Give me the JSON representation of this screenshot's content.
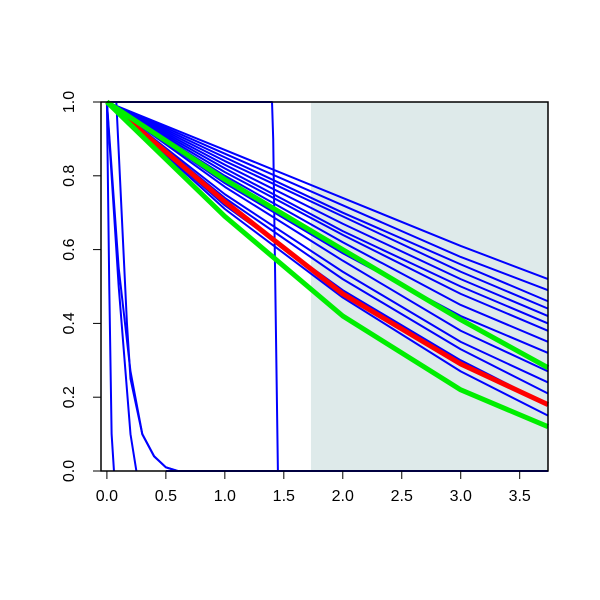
{
  "chart_data": {
    "type": "line",
    "xlim": [
      -0.05,
      3.74
    ],
    "ylim": [
      0,
      1
    ],
    "xticks": [
      {
        "value": 0,
        "label": "0.0"
      },
      0.5,
      {
        "value": 1,
        "label": "1.0"
      },
      1.5,
      {
        "value": 2,
        "label": "2.0"
      },
      2.5,
      {
        "value": 3,
        "label": "3.0"
      },
      3.5
    ],
    "yticks": [
      {
        "value": 0,
        "label": "0.0"
      },
      0.2,
      0.4,
      0.6,
      0.8,
      {
        "value": 1,
        "label": "1.0"
      }
    ],
    "shade": {
      "xlim": [
        1.73,
        3.74
      ],
      "color": "#deeaea"
    },
    "series": [
      {
        "color": "#0000ff",
        "width": 2,
        "x": [
          0.5,
          3.74
        ],
        "values": [
          0,
          0
        ]
      },
      {
        "color": "#0000ff",
        "width": 2,
        "x": [
          0,
          0.02,
          0.04,
          0.06
        ],
        "values": [
          1,
          0.5,
          0.1,
          0
        ]
      },
      {
        "color": "#0000ff",
        "width": 2,
        "x": [
          0,
          0.1,
          0.2,
          0.25
        ],
        "values": [
          1,
          0.5,
          0.1,
          0
        ]
      },
      {
        "color": "#0000ff",
        "width": 2,
        "x": [
          0,
          0.1,
          0.2,
          0.3,
          0.4,
          0.5,
          0.6
        ],
        "values": [
          1,
          0.55,
          0.27,
          0.1,
          0.04,
          0.01,
          0
        ]
      },
      {
        "color": "#0000ff",
        "width": 2,
        "x": [
          0.08,
          0.17,
          0.2,
          0.3,
          0.4,
          0.5,
          0.6
        ],
        "values": [
          1,
          0.4,
          0.25,
          0.1,
          0.04,
          0.01,
          0
        ]
      },
      {
        "color": "#0000ff",
        "width": 2,
        "x": [
          0,
          1.4,
          1.41,
          1.45
        ],
        "values": [
          1,
          1,
          0.9,
          0
        ]
      },
      {
        "color": "#0000ff",
        "width": 2,
        "x": [
          0,
          1,
          2,
          3,
          3.74
        ],
        "values": [
          1,
          0.87,
          0.74,
          0.61,
          0.52
        ]
      },
      {
        "color": "#0000ff",
        "width": 2,
        "x": [
          0,
          1,
          2,
          3,
          3.74
        ],
        "values": [
          1,
          0.86,
          0.72,
          0.58,
          0.49
        ]
      },
      {
        "color": "#0000ff",
        "width": 2,
        "x": [
          0,
          1,
          2,
          3,
          3.74
        ],
        "values": [
          1,
          0.85,
          0.7,
          0.56,
          0.46
        ]
      },
      {
        "color": "#0000ff",
        "width": 2,
        "x": [
          0,
          1,
          2,
          3,
          3.74
        ],
        "values": [
          1,
          0.84,
          0.69,
          0.54,
          0.44
        ]
      },
      {
        "color": "#0000ff",
        "width": 2,
        "x": [
          0,
          1,
          2,
          3,
          3.74
        ],
        "values": [
          1,
          0.83,
          0.67,
          0.52,
          0.42
        ]
      },
      {
        "color": "#0000ff",
        "width": 2,
        "x": [
          0,
          1,
          2,
          3,
          3.74
        ],
        "values": [
          1,
          0.82,
          0.65,
          0.5,
          0.4
        ]
      },
      {
        "color": "#0000ff",
        "width": 2,
        "x": [
          0,
          1,
          2,
          3,
          3.74
        ],
        "values": [
          1,
          0.81,
          0.64,
          0.48,
          0.38
        ]
      },
      {
        "color": "#0000ff",
        "width": 2,
        "x": [
          0,
          1,
          2,
          3,
          3.74
        ],
        "values": [
          1,
          0.8,
          0.62,
          0.45,
          0.35
        ]
      },
      {
        "color": "#0000ff",
        "width": 2,
        "x": [
          0,
          1,
          2,
          3,
          3.74
        ],
        "values": [
          1,
          0.78,
          0.59,
          0.42,
          0.32
        ]
      },
      {
        "color": "#0000ff",
        "width": 2,
        "x": [
          0,
          1,
          2,
          3,
          3.74
        ],
        "values": [
          1,
          0.77,
          0.57,
          0.38,
          0.27
        ]
      },
      {
        "color": "#0000ff",
        "width": 2,
        "x": [
          0,
          1,
          2,
          3,
          3.74
        ],
        "values": [
          1,
          0.75,
          0.54,
          0.35,
          0.24
        ]
      },
      {
        "color": "#0000ff",
        "width": 2,
        "x": [
          0,
          1,
          2,
          3,
          3.74
        ],
        "values": [
          1,
          0.74,
          0.52,
          0.33,
          0.21
        ]
      },
      {
        "color": "#0000ff",
        "width": 2,
        "x": [
          0,
          1,
          2,
          3,
          3.74
        ],
        "values": [
          1,
          0.72,
          0.49,
          0.3,
          0.18
        ]
      },
      {
        "color": "#0000ff",
        "width": 2,
        "x": [
          0,
          1,
          2,
          3,
          3.74
        ],
        "values": [
          1,
          0.71,
          0.47,
          0.27,
          0.15
        ]
      },
      {
        "color": "#ff0000",
        "width": 5,
        "x": [
          0,
          1,
          2,
          3,
          3.74
        ],
        "values": [
          1,
          0.73,
          0.48,
          0.29,
          0.18
        ]
      },
      {
        "color": "#00ee00",
        "width": 5,
        "x": [
          0,
          1,
          2,
          3,
          3.74
        ],
        "values": [
          1,
          0.79,
          0.6,
          0.41,
          0.28
        ]
      },
      {
        "color": "#00ee00",
        "width": 5,
        "x": [
          0,
          1,
          2,
          3,
          3.74
        ],
        "values": [
          1,
          0.69,
          0.42,
          0.22,
          0.12
        ]
      }
    ]
  }
}
